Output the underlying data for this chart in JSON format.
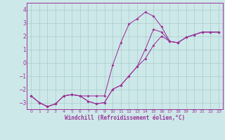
{
  "title": "",
  "xlabel": "Windchill (Refroidissement éolien,°C)",
  "ylabel": "",
  "bg_color": "#cde8e8",
  "line_color": "#993399",
  "grid_color": "#aacccc",
  "ylim": [
    -3.5,
    4.5
  ],
  "xlim": [
    -0.5,
    23.5
  ],
  "yticks": [
    -3,
    -2,
    -1,
    0,
    1,
    2,
    3,
    4
  ],
  "xticks": [
    0,
    1,
    2,
    3,
    4,
    5,
    6,
    7,
    8,
    9,
    10,
    11,
    12,
    13,
    14,
    15,
    16,
    17,
    18,
    19,
    20,
    21,
    22,
    23
  ],
  "line1_x": [
    0,
    1,
    2,
    3,
    4,
    5,
    6,
    7,
    8,
    9,
    10,
    11,
    12,
    13,
    14,
    15,
    16,
    17,
    18,
    19,
    20,
    21,
    22,
    23
  ],
  "line1_y": [
    -2.5,
    -3.0,
    -3.3,
    -3.1,
    -2.5,
    -2.4,
    -2.5,
    -2.5,
    -2.5,
    -2.5,
    -0.2,
    1.5,
    2.9,
    3.3,
    3.8,
    3.5,
    2.7,
    1.6,
    1.5,
    1.9,
    2.1,
    2.3,
    2.3,
    2.3
  ],
  "line2_x": [
    0,
    1,
    2,
    3,
    4,
    5,
    6,
    7,
    8,
    9,
    10,
    11,
    12,
    13,
    14,
    15,
    16,
    17,
    18,
    19,
    20,
    21,
    22,
    23
  ],
  "line2_y": [
    -2.5,
    -3.0,
    -3.3,
    -3.1,
    -2.5,
    -2.4,
    -2.5,
    -2.9,
    -3.1,
    -3.0,
    -2.0,
    -1.7,
    -1.0,
    -0.3,
    1.0,
    2.5,
    2.3,
    1.6,
    1.5,
    1.9,
    2.1,
    2.3,
    2.3,
    2.3
  ],
  "line3_x": [
    0,
    1,
    2,
    3,
    4,
    5,
    6,
    7,
    8,
    9,
    10,
    11,
    12,
    13,
    14,
    15,
    16,
    17,
    18,
    19,
    20,
    21,
    22,
    23
  ],
  "line3_y": [
    -2.5,
    -3.0,
    -3.3,
    -3.1,
    -2.5,
    -2.4,
    -2.5,
    -2.9,
    -3.1,
    -3.0,
    -2.0,
    -1.7,
    -1.0,
    -0.3,
    0.3,
    1.3,
    2.0,
    1.6,
    1.5,
    1.9,
    2.1,
    2.3,
    2.3,
    2.3
  ]
}
